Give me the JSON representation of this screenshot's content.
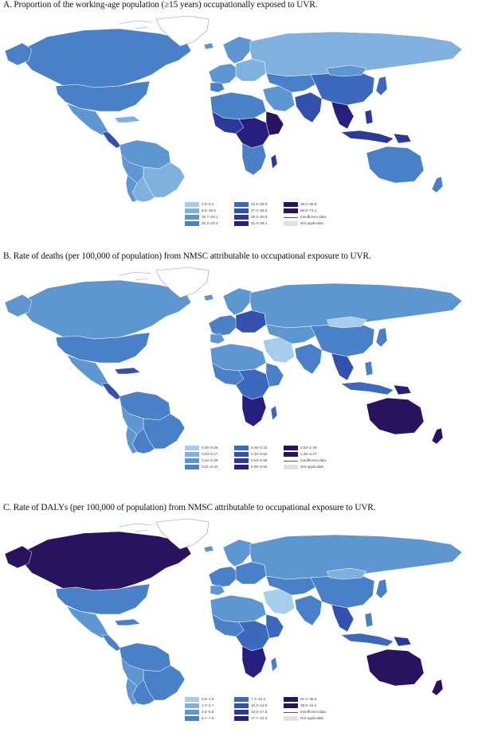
{
  "colors": {
    "ocean": "#ffffff",
    "greenland": "#ffffff",
    "antarctic_outline": "#9a9a9a",
    "c1": "#a6cde9",
    "c2": "#7fb0de",
    "c3": "#5e96d2",
    "c4": "#4a80c8",
    "c5": "#3c68bd",
    "c6": "#3350ad",
    "c7": "#2b3a9a",
    "c8": "#261f7e",
    "c9": "#29125f",
    "na": "#e0e0e0"
  },
  "panels": [
    {
      "title": "A. Proportion of the working-age population (≥15 years) occupationally exposed to UVR.",
      "legend": [
        {
          "label": "3.0–8.4",
          "color": "#a6cde9"
        },
        {
          "label": "9.5–16.6",
          "color": "#7fb0de"
        },
        {
          "label": "16.7–20.1",
          "color": "#5e96d2"
        },
        {
          "label": "20.2–23.4",
          "color": "#4a80c8"
        },
        {
          "label": "23.5–26.9",
          "color": "#3c68bd"
        },
        {
          "label": "27.0–28.2",
          "color": "#3350ad"
        },
        {
          "label": "28.3–30.5",
          "color": "#2b3a9a"
        },
        {
          "label": "31.0–39.1",
          "color": "#261f7e"
        },
        {
          "label": "39.2–55.8",
          "color": "#29125f"
        },
        {
          "label": "56.6–74.1",
          "color": "#29125f"
        },
        {
          "label": "Insufficient data",
          "color": "line"
        },
        {
          "label": "Not applicable",
          "color": "#e0e0e0"
        }
      ]
    },
    {
      "title": "B. Rate of deaths (per 100,000 of population) from NMSC attributable to occupational exposure to UVR.",
      "legend": [
        {
          "label": "0.00–0.06",
          "color": "#a6cde9"
        },
        {
          "label": "0.03–0.17",
          "color": "#7fb0de"
        },
        {
          "label": "0.18–0.28",
          "color": "#5e96d2"
        },
        {
          "label": "0.21–0.34",
          "color": "#4a80c8"
        },
        {
          "label": "0.35–0.42",
          "color": "#3c68bd"
        },
        {
          "label": "0.43–0.52",
          "color": "#3350ad"
        },
        {
          "label": "0.53–0.68",
          "color": "#2b3a9a"
        },
        {
          "label": "0.69–0.82",
          "color": "#261f7e"
        },
        {
          "label": "0.83–1.25",
          "color": "#29125f"
        },
        {
          "label": "1.26–2.27",
          "color": "#29125f"
        },
        {
          "label": "Insufficient data",
          "color": "line"
        },
        {
          "label": "Not applicable",
          "color": "#e0e0e0"
        }
      ]
    },
    {
      "title": "C. Rate of DALYs (per 100,000 of population) from NMSC attributable to occupational exposure to UVR.",
      "legend": [
        {
          "label": "0.8–1.6",
          "color": "#a6cde9"
        },
        {
          "label": "1.7–3.7",
          "color": "#7fb0de"
        },
        {
          "label": "3.8–5.6",
          "color": "#5e96d2"
        },
        {
          "label": "5.7–7.6",
          "color": "#4a80c8"
        },
        {
          "label": "7.7–10.2",
          "color": "#3c68bd"
        },
        {
          "label": "10.3–13.5",
          "color": "#3350ad"
        },
        {
          "label": "13.6–17.6",
          "color": "#2b3a9a"
        },
        {
          "label": "17.7–22.3",
          "color": "#261f7e"
        },
        {
          "label": "22.4–35.5",
          "color": "#29125f"
        },
        {
          "label": "38.6–43.4",
          "color": "#29125f"
        },
        {
          "label": "Insufficient data",
          "color": "line"
        },
        {
          "label": "Not applicable",
          "color": "#e0e0e0"
        }
      ]
    }
  ]
}
